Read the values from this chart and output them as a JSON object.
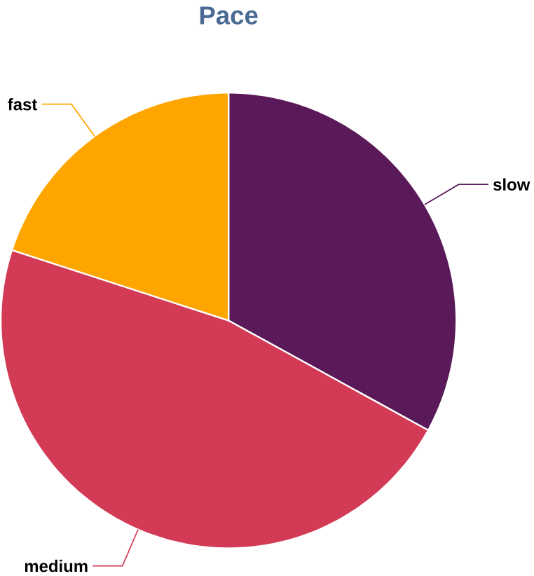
{
  "chart_data": {
    "type": "pie",
    "title": "Pace",
    "categories": [
      "slow",
      "medium",
      "fast"
    ],
    "values": [
      33,
      47,
      20
    ],
    "colors": [
      "#5a1a5a",
      "#d23a55",
      "#ffa500"
    ]
  }
}
